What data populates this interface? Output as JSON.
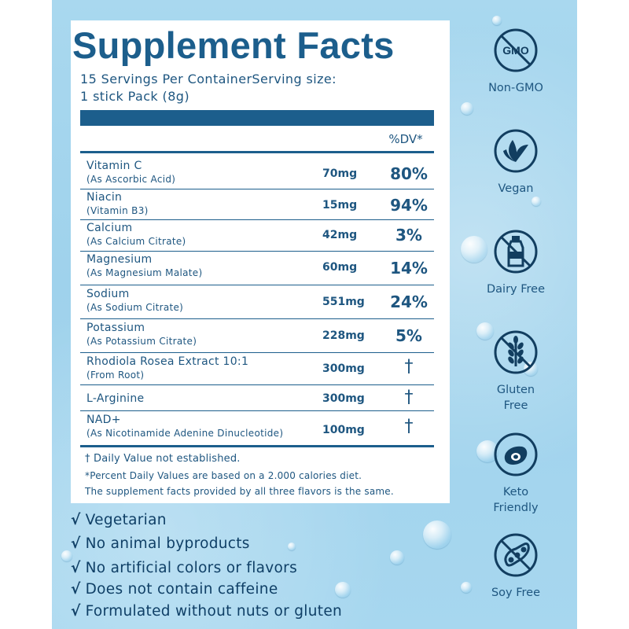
{
  "header": {
    "title": "Supplement Facts",
    "serving_line1": "15 Servings Per ContainerServing size:",
    "serving_line2": "1 stick Pack (8g)",
    "dv_header": "%DV*"
  },
  "nutrients": [
    {
      "name": "Vitamin C",
      "sub": "(As Ascorbic Acid)",
      "amount": "70mg",
      "dv": "80%"
    },
    {
      "name": "Niacin",
      "sub": "(Vitamin B3)",
      "amount": "15mg",
      "dv": "94%"
    },
    {
      "name": "Calcium",
      "sub": "(As Calcium Citrate)",
      "amount": "42mg",
      "dv": "3%"
    },
    {
      "name": "Magnesium",
      "sub": "(As Magnesium Malate)",
      "amount": "60mg",
      "dv": "14%"
    },
    {
      "name": "Sodium",
      "sub": "(As Sodium Citrate)",
      "amount": "551mg",
      "dv": "24%"
    },
    {
      "name": "Potassium",
      "sub": "(As Potassium Citrate)",
      "amount": "228mg",
      "dv": "5%"
    },
    {
      "name": "Rhodiola Rosea Extract 10:1",
      "sub": "(From Root)",
      "amount": "300mg",
      "dv": "†"
    },
    {
      "name": "L-Arginine",
      "sub": "",
      "amount": "300mg",
      "dv": "†"
    },
    {
      "name": "NAD+",
      "sub": "(As Nicotinamide Adenine Dinucleotide)",
      "amount": "100mg",
      "dv": "†"
    }
  ],
  "footnotes": {
    "dagger": "† Daily Value not established.",
    "percent": "*Percent Daily Values are based on a 2.000 calories diet.",
    "flavors": "The supplement facts provided by all three flavors is the same."
  },
  "checklist": {
    "mark": "√",
    "items": [
      "Vegetarian",
      "No animal byproducts",
      "No artificial colors or flavors",
      "Does not contain caffeine",
      "Formulated without nuts or gluten"
    ]
  },
  "badges": {
    "non_gmo": {
      "icon": "gmo-crossed-icon",
      "icon_text": "GMO",
      "label": "Non-GMO"
    },
    "vegan": {
      "icon": "leaf-icon",
      "label": "Vegan"
    },
    "dairy_free": {
      "icon": "milk-bottle-crossed-icon",
      "label": "Dairy Free"
    },
    "gluten_free": {
      "icon": "wheat-crossed-icon",
      "label_line1": "Gluten",
      "label_line2": "Free"
    },
    "keto": {
      "icon": "avocado-icon",
      "label_line1": "Keto",
      "label_line2": "Friendly"
    },
    "soy_free": {
      "icon": "soybean-crossed-icon",
      "label": "Soy Free"
    }
  },
  "colors": {
    "brand_blue": "#1c5e8c",
    "text_blue": "#1e5680",
    "background": "#a9d8ef"
  }
}
